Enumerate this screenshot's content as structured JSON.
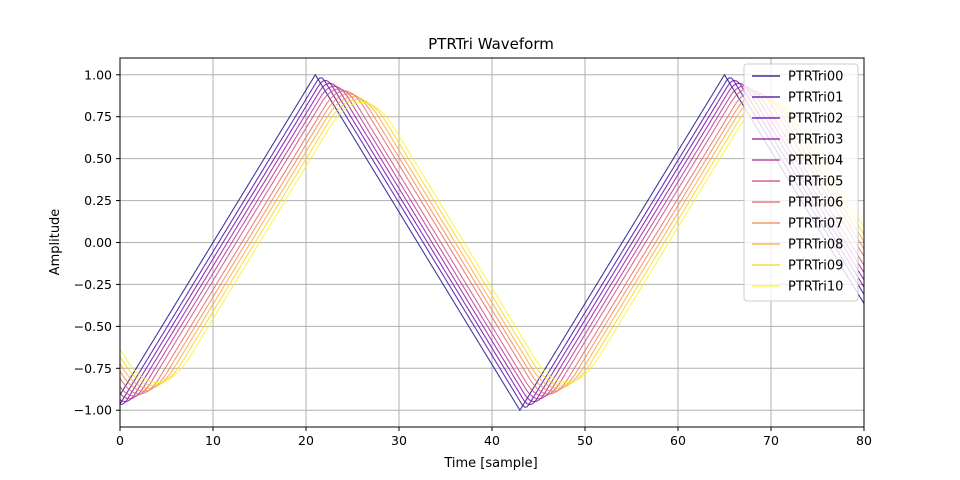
{
  "chart_data": {
    "type": "line",
    "title": "PTRTri Waveform",
    "xlabel": "Time [sample]",
    "ylabel": "Amplitude",
    "xlim": [
      0,
      80
    ],
    "ylim": [
      -1.1,
      1.1
    ],
    "xticks": [
      "0",
      "10",
      "20",
      "30",
      "40",
      "50",
      "60",
      "70",
      "80"
    ],
    "yticks": [
      "−1.00",
      "−0.75",
      "−0.50",
      "−0.25",
      "0.00",
      "0.25",
      "0.50",
      "0.75",
      "1.00"
    ],
    "grid": true,
    "legend_position": "top-right",
    "waveform": {
      "period_samples": 44,
      "peak_sample": 21,
      "trough_sample": 43,
      "delay_step_samples": 0.5
    },
    "series": [
      {
        "name": "PTRTri00",
        "color": "#0d0887",
        "delay": 0
      },
      {
        "name": "PTRTri01",
        "color": "#41049d",
        "delay": 1
      },
      {
        "name": "PTRTri02",
        "color": "#6a00a8",
        "delay": 2
      },
      {
        "name": "PTRTri03",
        "color": "#8f0da4",
        "delay": 3
      },
      {
        "name": "PTRTri04",
        "color": "#b12a90",
        "delay": 4
      },
      {
        "name": "PTRTri05",
        "color": "#cc4778",
        "delay": 5
      },
      {
        "name": "PTRTri06",
        "color": "#e16462",
        "delay": 6
      },
      {
        "name": "PTRTri07",
        "color": "#f2844b",
        "delay": 7
      },
      {
        "name": "PTRTri08",
        "color": "#fca636",
        "delay": 8
      },
      {
        "name": "PTRTri09",
        "color": "#fcce25",
        "delay": 9
      },
      {
        "name": "PTRTri10",
        "color": "#f0f921",
        "delay": 10
      }
    ]
  }
}
